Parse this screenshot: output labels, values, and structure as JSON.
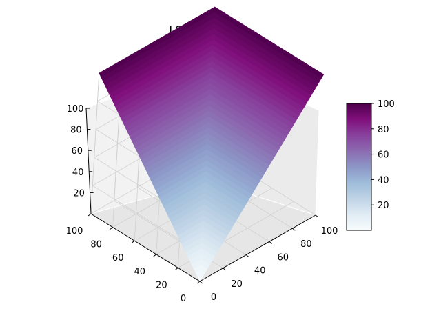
{
  "chart_data": {
    "type": "surface3d",
    "title": "LSMR (B: 1)",
    "colormap": "BuPu",
    "x_ticks": [
      0,
      20,
      40,
      60,
      80,
      100
    ],
    "y_ticks": [
      0,
      20,
      40,
      60,
      80,
      100
    ],
    "z_ticks": [
      20,
      40,
      60,
      80,
      100
    ],
    "x_range": [
      0,
      100
    ],
    "y_range": [
      0,
      100
    ],
    "z_range": [
      0,
      100
    ],
    "colorbar_ticks": [
      20,
      40,
      60,
      80,
      100
    ],
    "colorbar_range": [
      0,
      100
    ],
    "surface": {
      "formula": "z = max(x, y)",
      "x": [
        0,
        100
      ],
      "y": [
        0,
        100
      ],
      "z_min": 0,
      "z_max": 100
    },
    "grid": true,
    "pane_color": "#f2f2f2"
  }
}
